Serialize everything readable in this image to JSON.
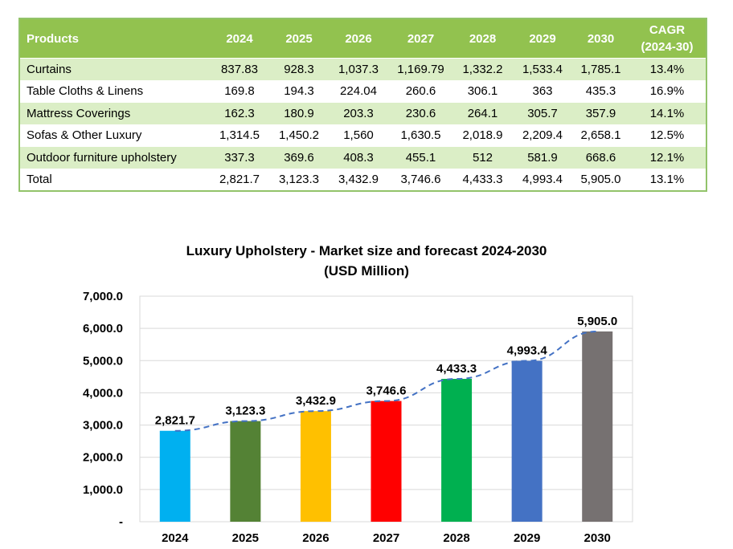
{
  "table": {
    "headers": [
      "Products",
      "2024",
      "2025",
      "2026",
      "2027",
      "2028",
      "2029",
      "2030"
    ],
    "cagr_header": [
      "CAGR",
      "(2024-30)"
    ],
    "rows": [
      [
        "Curtains",
        "837.83",
        "928.3",
        "1,037.3",
        "1,169.79",
        "1,332.2",
        "1,533.4",
        "1,785.1",
        "13.4%"
      ],
      [
        "Table Cloths & Linens",
        "169.8",
        "194.3",
        "224.04",
        "260.6",
        "306.1",
        "363",
        "435.3",
        "16.9%"
      ],
      [
        "Mattress Coverings",
        "162.3",
        "180.9",
        "203.3",
        "230.6",
        "264.1",
        "305.7",
        "357.9",
        "14.1%"
      ],
      [
        "Sofas & Other Luxury",
        "1,314.5",
        "1,450.2",
        "1,560",
        "1,630.5",
        "2,018.9",
        "2,209.4",
        "2,658.1",
        "12.5%"
      ],
      [
        "Outdoor furniture upholstery",
        "337.3",
        "369.6",
        "408.3",
        "455.1",
        "512",
        "581.9",
        "668.6",
        "12.1%"
      ],
      [
        "Total",
        "2,821.7",
        "3,123.3",
        "3,432.9",
        "3,746.6",
        "4,433.3",
        "4,993.4",
        "5,905.0",
        "13.1%"
      ]
    ],
    "colors": {
      "header_bg": "#92c24f",
      "band_bg": "#dbeec6",
      "border": "#92c36a"
    }
  },
  "chart_data": {
    "type": "bar",
    "title_lines": [
      "Luxury Upholstery - Market size and forecast 2024-2030",
      "(USD Million)"
    ],
    "categories": [
      "2024",
      "2025",
      "2026",
      "2027",
      "2028",
      "2029",
      "2030"
    ],
    "values": [
      2821.7,
      3123.3,
      3432.9,
      3746.6,
      4433.3,
      4993.4,
      5905.0
    ],
    "value_labels": [
      "2,821.7",
      "3,123.3",
      "3,432.9",
      "3,746.6",
      "4,433.3",
      "4,993.4",
      "5,905.0"
    ],
    "bar_colors": [
      "#00b0f0",
      "#548235",
      "#ffc000",
      "#ff0000",
      "#00b050",
      "#4472c4",
      "#767171"
    ],
    "ylim": [
      0,
      7000
    ],
    "yticks": [
      0,
      1000,
      2000,
      3000,
      4000,
      5000,
      6000,
      7000
    ],
    "ytick_labels": [
      "-",
      "1,000.0",
      "2,000.0",
      "3,000.0",
      "4,000.0",
      "5,000.0",
      "6,000.0",
      "7,000.0"
    ],
    "trendline": {
      "style": "dashed",
      "color": "#4472c4"
    },
    "grid": true,
    "legend": "none",
    "xlabel": "",
    "ylabel": ""
  }
}
